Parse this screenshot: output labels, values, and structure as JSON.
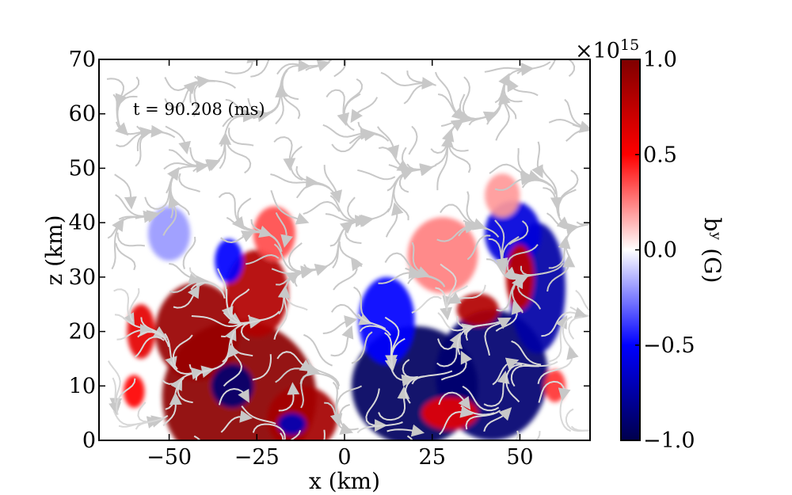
{
  "chart_data": {
    "type": "heatmap",
    "title": "",
    "annotation": "t = 90.208 (ms)",
    "xlabel": "x (km)",
    "ylabel": "z (km)",
    "xlim": [
      -70,
      70
    ],
    "ylim": [
      0,
      70
    ],
    "x_ticks": [
      -50,
      -25,
      0,
      25,
      50
    ],
    "x_tick_labels": [
      "−50",
      "−25",
      "0",
      "25",
      "50"
    ],
    "y_ticks": [
      0,
      10,
      20,
      30,
      40,
      50,
      60,
      70
    ],
    "y_tick_labels": [
      "0",
      "10",
      "20",
      "30",
      "40",
      "50",
      "60",
      "70"
    ],
    "colorbar": {
      "label": "bʸ (G)",
      "range": [
        -1.0,
        1.0
      ],
      "ticks": [
        1.0,
        0.5,
        0.0,
        -0.5,
        -1.0
      ],
      "tick_labels": [
        "1.0",
        "0.5",
        "0.0",
        "−0.5",
        "−1.0"
      ],
      "multiplier": "×10",
      "multiplier_exponent": "15",
      "colormap": "seismic",
      "colors": [
        "#00004c",
        "#0000ff",
        "#ffffff",
        "#ff0000",
        "#7f0000"
      ]
    },
    "streamline_color": "#cccccc",
    "regions": [
      {
        "x": -30,
        "z": 8,
        "value": 0.95,
        "rx": 22,
        "rz": 14
      },
      {
        "x": -42,
        "z": 20,
        "value": 0.9,
        "rx": 12,
        "rz": 9
      },
      {
        "x": -25,
        "z": 27,
        "value": 0.8,
        "rx": 9,
        "rz": 8
      },
      {
        "x": -12,
        "z": 4,
        "value": 0.85,
        "rx": 10,
        "rz": 6
      },
      {
        "x": -20,
        "z": 38,
        "value": 0.35,
        "rx": 6,
        "rz": 5
      },
      {
        "x": -58,
        "z": 20,
        "value": 0.6,
        "rx": 4,
        "rz": 5
      },
      {
        "x": -60,
        "z": 9,
        "value": 0.5,
        "rx": 3,
        "rz": 3
      },
      {
        "x": -32,
        "z": 10,
        "value": -0.9,
        "rx": 6,
        "rz": 4
      },
      {
        "x": -15,
        "z": 3,
        "value": -0.7,
        "rx": 4,
        "rz": 2
      },
      {
        "x": -33,
        "z": 33,
        "value": -0.5,
        "rx": 4,
        "rz": 4
      },
      {
        "x": -50,
        "z": 38,
        "value": -0.2,
        "rx": 6,
        "rz": 5
      },
      {
        "x": 20,
        "z": 10,
        "value": -0.95,
        "rx": 18,
        "rz": 11
      },
      {
        "x": 42,
        "z": 12,
        "value": -0.9,
        "rx": 16,
        "rz": 12
      },
      {
        "x": 55,
        "z": 28,
        "value": -0.75,
        "rx": 8,
        "rz": 12
      },
      {
        "x": 48,
        "z": 38,
        "value": -0.6,
        "rx": 8,
        "rz": 6
      },
      {
        "x": 12,
        "z": 22,
        "value": -0.5,
        "rx": 8,
        "rz": 8
      },
      {
        "x": 38,
        "z": 24,
        "value": 0.8,
        "rx": 6,
        "rz": 3
      },
      {
        "x": 50,
        "z": 30,
        "value": 0.75,
        "rx": 4,
        "rz": 6
      },
      {
        "x": 28,
        "z": 34,
        "value": 0.25,
        "rx": 10,
        "rz": 7
      },
      {
        "x": 30,
        "z": 5,
        "value": 0.6,
        "rx": 8,
        "rz": 3
      },
      {
        "x": 45,
        "z": 45,
        "value": 0.2,
        "rx": 5,
        "rz": 4
      },
      {
        "x": 60,
        "z": 10,
        "value": 0.4,
        "rx": 3,
        "rz": 3
      }
    ]
  }
}
